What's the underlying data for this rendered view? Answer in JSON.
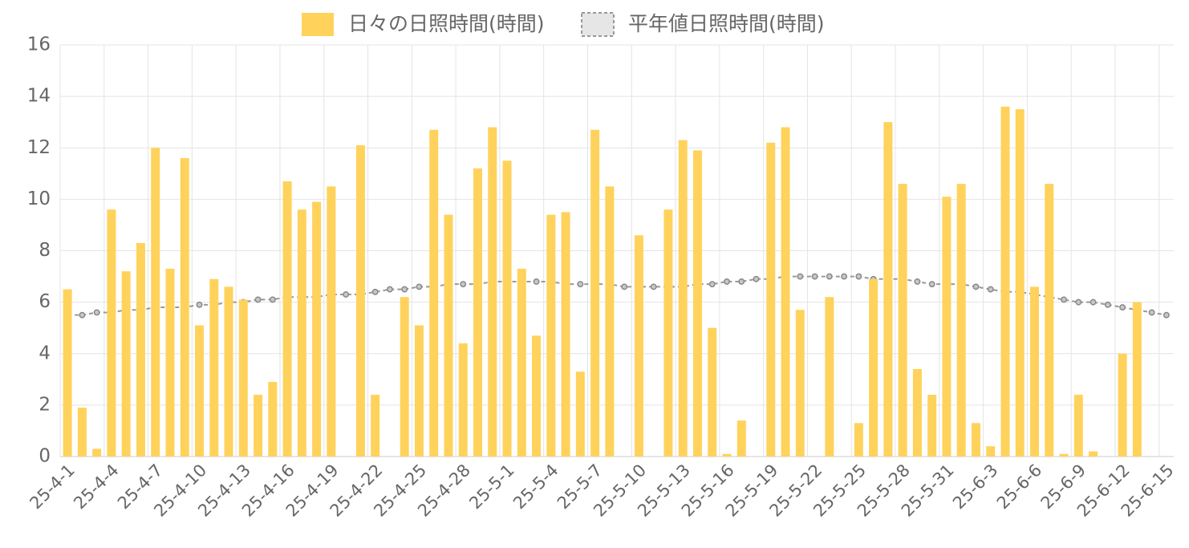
{
  "chart_data": {
    "type": "bar",
    "categories": [
      "25-4-1",
      null,
      null,
      "25-4-4",
      null,
      null,
      "25-4-7",
      null,
      null,
      "25-4-10",
      null,
      null,
      "25-4-13",
      null,
      null,
      "25-4-16",
      null,
      null,
      "25-4-19",
      null,
      null,
      "25-4-22",
      null,
      null,
      "25-4-25",
      null,
      null,
      "25-4-28",
      null,
      null,
      "25-5-1",
      null,
      null,
      "25-5-4",
      null,
      null,
      "25-5-7",
      null,
      null,
      "25-5-10",
      null,
      null,
      "25-5-13",
      null,
      null,
      "25-5-16",
      null,
      null,
      "25-5-19",
      null,
      null,
      "25-5-22",
      null,
      null,
      "25-5-25",
      null,
      null,
      "25-5-28",
      null,
      null,
      "25-5-31",
      null,
      null,
      "25-6-3",
      null,
      null,
      "25-6-6",
      null,
      null,
      "25-6-9",
      null,
      null,
      "25-6-12",
      null,
      null,
      "25-6-15"
    ],
    "series": [
      {
        "name": "日々の日照時間(時間)",
        "type": "bar",
        "color": "#ffd25c",
        "values": [
          6.5,
          1.9,
          0.3,
          9.6,
          7.2,
          8.3,
          12.0,
          7.3,
          11.6,
          5.1,
          6.9,
          6.6,
          6.1,
          2.4,
          2.9,
          10.7,
          9.6,
          9.9,
          10.5,
          0,
          12.1,
          2.4,
          0,
          6.2,
          5.1,
          12.7,
          9.4,
          4.4,
          11.2,
          12.8,
          11.5,
          7.3,
          4.7,
          9.4,
          9.5,
          3.3,
          12.7,
          10.5,
          0,
          8.6,
          0,
          9.6,
          12.3,
          11.9,
          5.0,
          0.1,
          1.4,
          0,
          12.2,
          12.8,
          5.7,
          0,
          6.2,
          0,
          1.3,
          6.9,
          13.0,
          10.6,
          3.4,
          2.4,
          10.1,
          10.6,
          1.3,
          0.4,
          13.6,
          13.5,
          6.6,
          10.6,
          0.1,
          2.4,
          0.2,
          0,
          4.0,
          6.0,
          0,
          0
        ]
      },
      {
        "name": "平年値日照時間(時間)",
        "type": "line",
        "color": "#999999",
        "values": [
          5.5,
          5.5,
          5.6,
          5.6,
          5.7,
          5.7,
          5.8,
          5.8,
          5.8,
          5.9,
          5.9,
          6.0,
          6.0,
          6.1,
          6.1,
          6.2,
          6.2,
          6.2,
          6.3,
          6.3,
          6.3,
          6.4,
          6.5,
          6.5,
          6.6,
          6.6,
          6.7,
          6.7,
          6.7,
          6.8,
          6.8,
          6.8,
          6.8,
          6.8,
          6.7,
          6.7,
          6.7,
          6.7,
          6.6,
          6.6,
          6.6,
          6.6,
          6.6,
          6.7,
          6.7,
          6.8,
          6.8,
          6.9,
          6.9,
          7.0,
          7.0,
          7.0,
          7.0,
          7.0,
          7.0,
          6.9,
          6.9,
          6.9,
          6.8,
          6.7,
          6.7,
          6.7,
          6.6,
          6.5,
          6.4,
          6.4,
          6.3,
          6.2,
          6.1,
          6.0,
          6.0,
          5.9,
          5.8,
          5.7,
          5.6,
          5.5
        ]
      }
    ],
    "ylim": [
      0,
      16
    ],
    "yticks": [
      0,
      2,
      4,
      6,
      8,
      10,
      12,
      14,
      16
    ],
    "grid": true,
    "legend": "top"
  }
}
